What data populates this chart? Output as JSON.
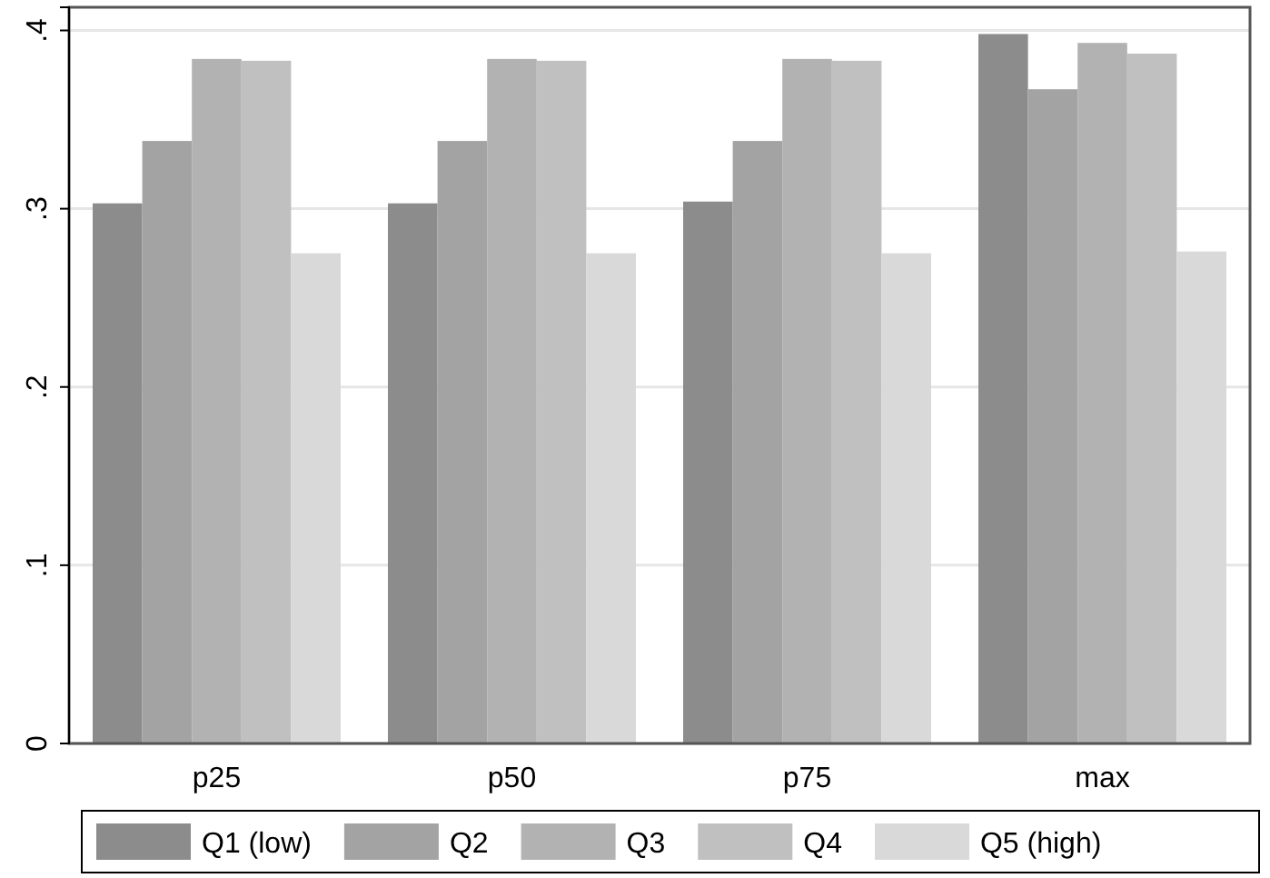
{
  "chart_data": {
    "type": "bar",
    "categories": [
      "p25",
      "p50",
      "p75",
      "max"
    ],
    "series": [
      {
        "name": "Q1 (low)",
        "color": "#8c8c8c",
        "values": [
          0.303,
          0.303,
          0.304,
          0.398
        ]
      },
      {
        "name": "Q2",
        "color": "#a3a3a3",
        "values": [
          0.338,
          0.338,
          0.338,
          0.367
        ]
      },
      {
        "name": "Q3",
        "color": "#b2b2b2",
        "values": [
          0.384,
          0.384,
          0.384,
          0.393
        ]
      },
      {
        "name": "Q4",
        "color": "#c0c0c0",
        "values": [
          0.383,
          0.383,
          0.383,
          0.387
        ]
      },
      {
        "name": "Q5 (high)",
        "color": "#d9d9d9",
        "values": [
          0.275,
          0.275,
          0.275,
          0.276
        ]
      }
    ],
    "ylim": [
      0,
      0.413
    ],
    "yticks": [
      {
        "value": 0,
        "label": "0"
      },
      {
        "value": 0.1,
        "label": ".1"
      },
      {
        "value": 0.2,
        "label": ".2"
      },
      {
        "value": 0.3,
        "label": ".3"
      },
      {
        "value": 0.4,
        "label": ".4"
      }
    ],
    "grid": "y",
    "legend": "bottom"
  }
}
